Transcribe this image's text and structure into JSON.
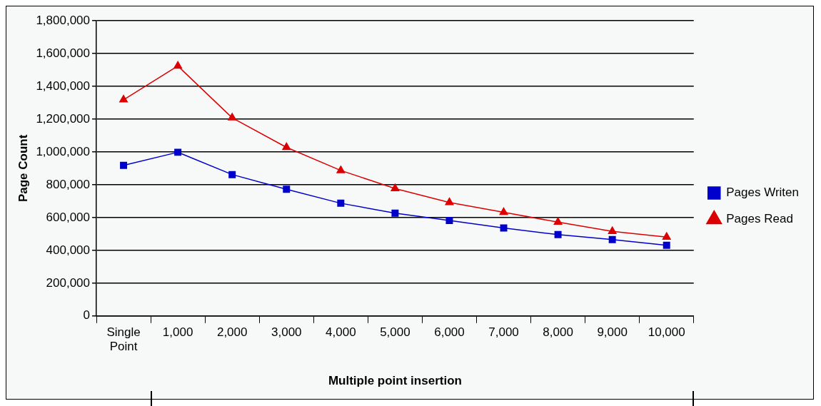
{
  "chart_data": {
    "type": "line",
    "xlabel": "Multiple point insertion",
    "ylabel": "Page Count",
    "categories": [
      "Single Point",
      "1,000",
      "2,000",
      "3,000",
      "4,000",
      "5,000",
      "6,000",
      "7,000",
      "8,000",
      "9,000",
      "10,000"
    ],
    "series": [
      {
        "name": "Pages Writen",
        "color": "#0000cc",
        "marker": "square",
        "values": [
          918000,
          998000,
          862000,
          772000,
          687000,
          627000,
          582000,
          536000,
          496000,
          466000,
          431000
        ]
      },
      {
        "name": "Pages Read",
        "color": "#dd0000",
        "marker": "triangle",
        "values": [
          1318000,
          1524000,
          1208000,
          1028000,
          887000,
          777000,
          692000,
          632000,
          572000,
          516000,
          481000
        ]
      }
    ],
    "ylim": [
      0,
      1800000
    ],
    "yticks": [
      {
        "value": 0,
        "label": "0"
      },
      {
        "value": 200000,
        "label": "200,000"
      },
      {
        "value": 400000,
        "label": "400,000"
      },
      {
        "value": 600000,
        "label": "600,000"
      },
      {
        "value": 800000,
        "label": "800,000"
      },
      {
        "value": 1000000,
        "label": "1,000,000"
      },
      {
        "value": 1200000,
        "label": "1,200,000"
      },
      {
        "value": 1400000,
        "label": "1,400,000"
      },
      {
        "value": 1600000,
        "label": "1,600,000"
      },
      {
        "value": 1800000,
        "label": "1,800,000"
      }
    ],
    "grid": "y",
    "legend": "right",
    "line_style": "solid"
  }
}
